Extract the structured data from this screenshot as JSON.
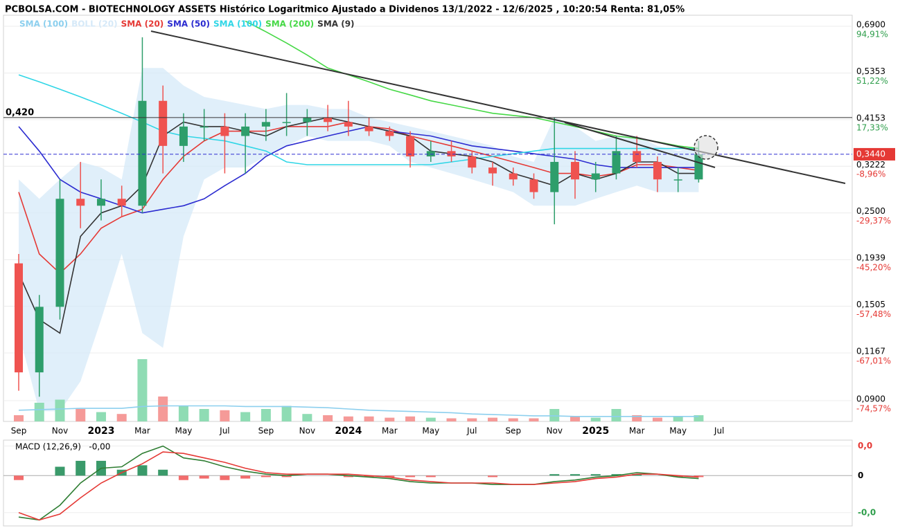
{
  "chart_data": [
    {
      "type": "candlestick",
      "title": "PCBOLSA.COM - BIOTECHNOLOGY ASSETS Histórico Logaritmico Ajustado a Dividenos 13/1/2022 - 12/6/2025 , 10:20:54 Renta: 81,05%",
      "categories": [
        "Sep",
        null,
        "Nov",
        null,
        "2023",
        null,
        "Mar",
        null,
        "May",
        null,
        "Jul",
        null,
        "Sep",
        null,
        "Nov",
        null,
        "2024",
        null,
        "Mar",
        null,
        "May",
        null,
        "Jul",
        null,
        "Sep",
        null,
        "Nov",
        null,
        "2025",
        null,
        "Mar",
        null,
        "May",
        null,
        "Jul"
      ],
      "open": [
        0.19,
        0.105,
        0.15,
        0.27,
        0.26,
        0.27,
        0.26,
        0.46,
        0.36,
        0.4,
        0.4,
        0.38,
        0.4,
        0.41,
        0.41,
        0.42,
        0.41,
        0.4,
        0.39,
        0.38,
        0.34,
        0.35,
        0.34,
        0.32,
        0.31,
        0.3,
        0.28,
        0.33,
        0.3,
        0.31,
        0.35,
        0.33,
        0.3,
        0.3,
        null
      ],
      "high": [
        0.2,
        0.16,
        0.3,
        0.33,
        0.3,
        0.29,
        0.65,
        0.5,
        0.43,
        0.44,
        0.43,
        0.43,
        0.44,
        0.48,
        0.44,
        0.45,
        0.46,
        0.42,
        0.4,
        0.39,
        0.37,
        0.37,
        0.35,
        0.33,
        0.32,
        0.31,
        0.42,
        0.35,
        0.33,
        0.38,
        0.38,
        0.34,
        0.32,
        0.37,
        null
      ],
      "low": [
        0.095,
        0.092,
        0.14,
        0.23,
        0.24,
        0.245,
        0.25,
        0.31,
        0.33,
        0.37,
        0.31,
        0.31,
        0.37,
        0.38,
        0.38,
        0.39,
        0.38,
        0.38,
        0.37,
        0.32,
        0.33,
        0.33,
        0.31,
        0.29,
        0.29,
        0.27,
        0.235,
        0.27,
        0.28,
        0.3,
        0.32,
        0.28,
        0.28,
        0.295,
        null
      ],
      "close": [
        0.105,
        0.15,
        0.27,
        0.26,
        0.27,
        0.26,
        0.46,
        0.36,
        0.4,
        0.4,
        0.38,
        0.4,
        0.41,
        0.41,
        0.42,
        0.41,
        0.4,
        0.39,
        0.38,
        0.34,
        0.35,
        0.34,
        0.32,
        0.31,
        0.3,
        0.28,
        0.33,
        0.3,
        0.31,
        0.35,
        0.33,
        0.3,
        0.3,
        0.344,
        null
      ],
      "up_color": "#2e9e6b",
      "down_color": "#ef5350",
      "volume": [
        10,
        30,
        35,
        20,
        15,
        12,
        100,
        40,
        25,
        20,
        18,
        15,
        20,
        25,
        12,
        10,
        8,
        8,
        6,
        8,
        6,
        5,
        5,
        6,
        5,
        5,
        20,
        8,
        6,
        20,
        10,
        6,
        8,
        10,
        null
      ],
      "vlim": [
        0,
        100
      ],
      "volume_up_color": "#8fdcb4",
      "volume_down_color": "#f59a98",
      "series": [
        {
          "name": "SMA (100)",
          "color": "#8ccfee",
          "panel": "volume",
          "values": [
            18,
            19,
            20,
            21,
            21,
            21,
            24,
            25,
            25,
            25,
            25,
            24,
            24,
            24,
            23,
            22,
            20,
            18,
            17,
            16,
            15,
            14,
            12,
            11,
            10,
            9,
            9,
            8,
            8,
            8,
            8,
            8,
            8,
            8,
            null
          ]
        },
        {
          "name": "BOLL (20)",
          "color": "#d6e9f8",
          "upper": [
            0.3,
            0.27,
            0.3,
            0.33,
            0.32,
            0.3,
            0.55,
            0.55,
            0.5,
            0.47,
            0.46,
            0.45,
            0.44,
            0.45,
            0.45,
            0.44,
            0.44,
            0.42,
            0.41,
            0.4,
            0.39,
            0.38,
            0.37,
            0.36,
            0.34,
            0.33,
            0.42,
            0.4,
            0.37,
            0.38,
            0.38,
            0.36,
            0.35,
            0.36,
            null
          ],
          "lower": [
            0.13,
            0.085,
            0.085,
            0.1,
            0.14,
            0.2,
            0.13,
            0.12,
            0.22,
            0.3,
            0.32,
            0.32,
            0.34,
            0.36,
            0.38,
            0.37,
            0.37,
            0.37,
            0.36,
            0.33,
            0.32,
            0.31,
            0.3,
            0.29,
            0.28,
            0.26,
            0.26,
            0.26,
            0.27,
            0.28,
            0.29,
            0.28,
            0.28,
            0.28,
            null
          ]
        },
        {
          "name": "SMA (20)",
          "color": "#e53935",
          "values": [
            0.28,
            0.2,
            0.18,
            0.2,
            0.23,
            0.245,
            0.255,
            0.3,
            0.34,
            0.37,
            0.39,
            0.39,
            0.39,
            0.4,
            0.4,
            0.4,
            0.41,
            0.4,
            0.395,
            0.38,
            0.37,
            0.36,
            0.35,
            0.34,
            0.33,
            0.32,
            0.31,
            0.31,
            0.305,
            0.31,
            0.325,
            0.325,
            0.32,
            0.315,
            null
          ]
        },
        {
          "name": "SMA (50)",
          "color": "#2b2bd0",
          "values": [
            0.4,
            0.35,
            0.3,
            0.28,
            0.27,
            0.26,
            0.25,
            0.255,
            0.26,
            0.27,
            0.29,
            0.31,
            0.34,
            0.36,
            0.37,
            0.38,
            0.39,
            0.4,
            0.39,
            0.385,
            0.38,
            0.37,
            0.36,
            0.355,
            0.35,
            0.345,
            0.34,
            0.335,
            0.325,
            0.32,
            0.32,
            0.32,
            0.32,
            0.32,
            null
          ]
        },
        {
          "name": "SMA (100)",
          "color": "#2fd6e6",
          "values": [
            0.53,
            0.51,
            0.49,
            0.47,
            0.45,
            0.43,
            0.41,
            0.39,
            0.38,
            0.375,
            0.37,
            0.36,
            0.35,
            0.33,
            0.325,
            0.325,
            0.325,
            0.325,
            0.325,
            0.325,
            0.325,
            0.33,
            0.335,
            0.34,
            0.345,
            0.35,
            0.355,
            0.355,
            0.355,
            0.355,
            0.355,
            0.355,
            0.355,
            0.355,
            null
          ]
        },
        {
          "name": "SMA (200)",
          "color": "#45d845",
          "values": [
            null,
            null,
            null,
            null,
            null,
            null,
            null,
            null,
            null,
            null,
            null,
            0.71,
            0.67,
            0.63,
            0.59,
            0.55,
            0.53,
            0.51,
            0.49,
            0.475,
            0.46,
            0.45,
            0.44,
            0.43,
            0.425,
            0.42,
            0.41,
            0.4,
            0.39,
            0.38,
            0.375,
            0.368,
            0.36,
            0.355,
            null
          ]
        },
        {
          "name": "SMA (9)",
          "color": "#333333",
          "values": [
            0.18,
            0.14,
            0.13,
            0.22,
            0.25,
            0.26,
            0.29,
            0.38,
            0.41,
            0.4,
            0.4,
            0.39,
            0.38,
            0.4,
            0.41,
            0.42,
            0.41,
            0.4,
            0.39,
            0.38,
            0.35,
            0.345,
            0.34,
            0.33,
            0.31,
            0.3,
            0.29,
            0.31,
            0.3,
            0.31,
            0.33,
            0.33,
            0.31,
            0.31,
            null
          ]
        }
      ],
      "log_scale": true,
      "ylim": [
        0.0804,
        0.733
      ],
      "yticks": [
        {
          "value": 0.69,
          "label": "0,6900"
        },
        {
          "value": 0.5353,
          "label": "0,5353"
        },
        {
          "value": 0.4153,
          "label": "0,4153"
        },
        {
          "value": 0.3222,
          "label": "0,3222"
        },
        {
          "value": 0.25,
          "label": "0,2500"
        },
        {
          "value": 0.1939,
          "label": "0,1939"
        },
        {
          "value": 0.1505,
          "label": "0,1505"
        },
        {
          "value": 0.1167,
          "label": "0,1167"
        },
        {
          "value": 0.09,
          "label": "0,0900"
        }
      ],
      "y2lim": [
        -77.29,
        107.06
      ],
      "y2ticks": [
        {
          "value": 94.91,
          "label": "94,91%"
        },
        {
          "value": 51.22,
          "label": "51,22%"
        },
        {
          "value": 17.33,
          "label": "17,33%"
        },
        {
          "value": -8.96,
          "label": "-8,96%"
        },
        {
          "value": -29.37,
          "label": "-29,37%"
        },
        {
          "value": -45.2,
          "label": "-45,20%"
        },
        {
          "value": -57.48,
          "label": "-57,48%"
        },
        {
          "value": -67.01,
          "label": "-67,01%"
        },
        {
          "value": -74.57,
          "label": "-74,57%"
        }
      ],
      "grid": true,
      "hlines": [
        {
          "value": 0.42,
          "label": "0,420",
          "color": "#333333"
        }
      ],
      "last_price": {
        "value": 0.344,
        "label": "0,3440",
        "color": "#e53935",
        "line_color": "#2b2bd0"
      }
    },
    {
      "type": "macd",
      "title": "MACD (12,26,9)   -0,00",
      "ylim": [
        -0.034,
        0.024
      ],
      "yticks": [
        {
          "value": 0.02,
          "label": "0,0"
        },
        0,
        {
          "value": -0.025,
          "label": "-0,0"
        }
      ],
      "series": [
        {
          "color": "#2e7d32",
          "values": [
            -0.028,
            -0.03,
            -0.02,
            -0.005,
            0.005,
            0.006,
            0.015,
            0.02,
            0.012,
            0.01,
            0.006,
            0.003,
            0.001,
            0,
            0.001,
            0.001,
            0,
            -0.001,
            -0.002,
            -0.004,
            -0.005,
            -0.005,
            -0.005,
            -0.006,
            -0.006,
            -0.006,
            -0.004,
            -0.003,
            -0.001,
            0,
            0.002,
            0.001,
            -0.001,
            -0.002,
            null
          ]
        },
        {
          "color": "#e53935",
          "values": [
            -0.025,
            -0.03,
            -0.026,
            -0.015,
            -0.005,
            0.002,
            0.008,
            0.016,
            0.015,
            0.012,
            0.009,
            0.005,
            0.002,
            0.001,
            0.001,
            0.001,
            0.001,
            0,
            -0.001,
            -0.003,
            -0.004,
            -0.005,
            -0.005,
            -0.005,
            -0.006,
            -0.006,
            -0.005,
            -0.004,
            -0.002,
            -0.001,
            0.001,
            0.001,
            0,
            -0.001,
            null
          ]
        }
      ],
      "histogram": {
        "color": "#3a9a6a",
        "negative_color": "#f26d6d",
        "values": [
          -0.003,
          0,
          0.006,
          0.01,
          0.01,
          0.004,
          0.007,
          0.004,
          -0.003,
          -0.002,
          -0.003,
          -0.002,
          -0.001,
          -0.001,
          0,
          0,
          -0.001,
          -0.001,
          -0.001,
          -0.001,
          -0.001,
          0,
          0,
          -0.001,
          0,
          0,
          0.001,
          0.001,
          0.001,
          0.001,
          0.001,
          0,
          -0.001,
          -0.001,
          null
        ]
      }
    }
  ]
}
